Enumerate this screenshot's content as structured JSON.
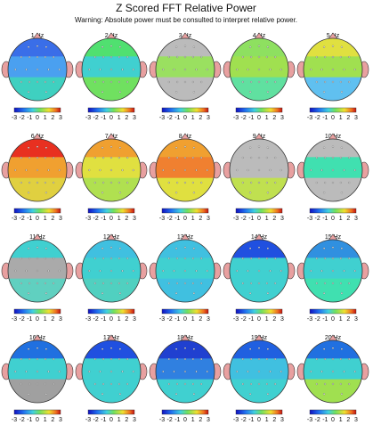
{
  "title": "Z Scored FFT Relative Power",
  "subtitle": "Warning:  Absolute power must be consulted to interpret relative power.",
  "colorbar_ticks": [
    -3,
    -2,
    -1,
    0,
    1,
    2,
    3
  ],
  "maps": [
    {
      "label": "1 Hz",
      "colors": [
        "#3a6ee8",
        "#4aa0f0",
        "#3fd0c0"
      ]
    },
    {
      "label": "2 Hz",
      "colors": [
        "#50e070",
        "#40d0d0",
        "#70e060"
      ]
    },
    {
      "label": "3 Hz",
      "colors": [
        "#bbbbbb",
        "#9ae060",
        "#bbbbbb"
      ]
    },
    {
      "label": "4 Hz",
      "colors": [
        "#8ee060",
        "#a0e050",
        "#60e0a0"
      ]
    },
    {
      "label": "5 Hz",
      "colors": [
        "#e0e040",
        "#a0e050",
        "#60c0f0"
      ]
    },
    {
      "label": "6 Hz",
      "colors": [
        "#e83020",
        "#f0a030",
        "#e0d040"
      ]
    },
    {
      "label": "7 Hz",
      "colors": [
        "#f0a030",
        "#e0e040",
        "#b0e050"
      ]
    },
    {
      "label": "8 Hz",
      "colors": [
        "#f0a030",
        "#f08030",
        "#e0e040"
      ]
    },
    {
      "label": "9 Hz",
      "colors": [
        "#bbbbbb",
        "#bbbbbb",
        "#c0e050"
      ]
    },
    {
      "label": "10 Hz",
      "colors": [
        "#bbbbbb",
        "#40e0b0",
        "#bbbbbb"
      ]
    },
    {
      "label": "11 Hz",
      "colors": [
        "#40d0d0",
        "#aaaaaa",
        "#60d0c0"
      ]
    },
    {
      "label": "12 Hz",
      "colors": [
        "#40c0e0",
        "#40d0d0",
        "#50d0c0"
      ]
    },
    {
      "label": "13 Hz",
      "colors": [
        "#40c0e0",
        "#40d0d0",
        "#40c0e0"
      ]
    },
    {
      "label": "14 Hz",
      "colors": [
        "#2050e0",
        "#40d0d0",
        "#40d0d0"
      ]
    },
    {
      "label": "15 Hz",
      "colors": [
        "#3090e0",
        "#40d0d0",
        "#40e0b0"
      ]
    },
    {
      "label": "16 Hz",
      "colors": [
        "#2070e0",
        "#40d0d0",
        "#a0a0a0"
      ]
    },
    {
      "label": "17 Hz",
      "colors": [
        "#2050e0",
        "#40d0d0",
        "#40d0d0"
      ]
    },
    {
      "label": "18 Hz",
      "colors": [
        "#2040d0",
        "#3080e0",
        "#40d0d0"
      ]
    },
    {
      "label": "19 Hz",
      "colors": [
        "#2060e0",
        "#40c0e0",
        "#40d0d0"
      ]
    },
    {
      "label": "20 Hz",
      "colors": [
        "#2070e0",
        "#40d0d0",
        "#a0e050"
      ]
    }
  ]
}
